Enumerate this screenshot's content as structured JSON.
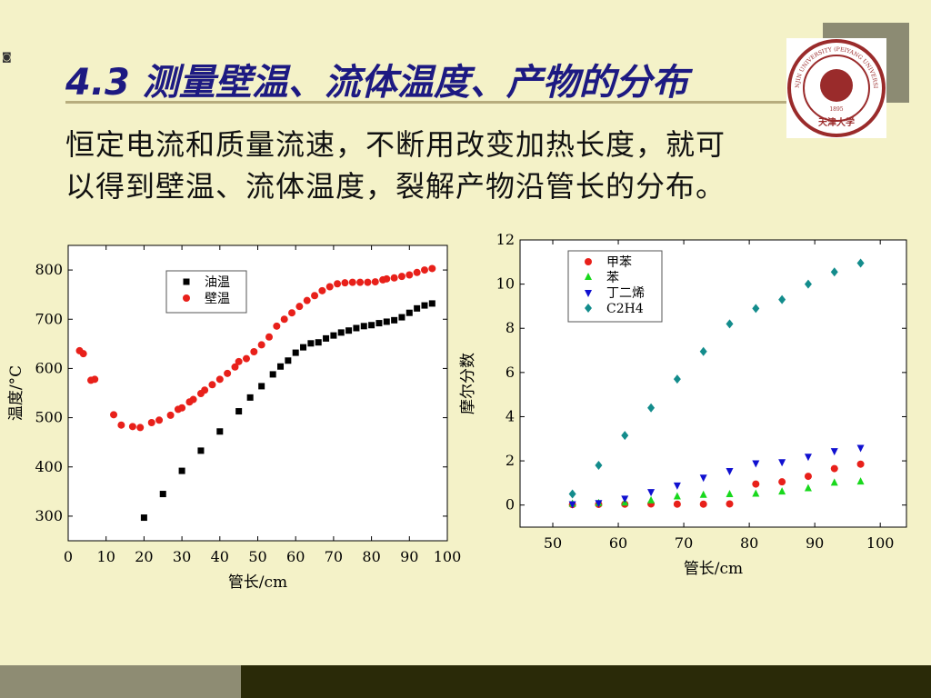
{
  "slide": {
    "title": "4.3 测量壁温、流体温度、产物的分布",
    "body_line1": "恒定电流和质量流速，不断用改变加热长度，就可",
    "body_line2": "以得到壁温、流体温度，裂解产物沿管长的分布。",
    "logo_lines": [
      "TIANJIN UNIVERSITY (PEIYANG UNIVERSITY)",
      "1895",
      "天津大学"
    ],
    "colors": {
      "background": "#f4f2c8",
      "title": "#1d1a82",
      "rule": "#b7ad7e",
      "footer_light": "#8e8c73",
      "footer_dark": "#2a2a08",
      "seal": "#9a2b2b"
    }
  },
  "chart_data": [
    {
      "type": "scatter",
      "xlabel": "管长/cm",
      "ylabel": "温度/°C",
      "xlim": [
        0,
        100
      ],
      "ylim": [
        250,
        850
      ],
      "xticks": [
        0,
        10,
        20,
        30,
        40,
        50,
        60,
        70,
        80,
        90,
        100
      ],
      "yticks": [
        300,
        400,
        500,
        600,
        700,
        800
      ],
      "legend_position": "top-center",
      "series": [
        {
          "name": "油温",
          "marker": "square",
          "color": "#000000",
          "x": [
            20,
            25,
            30,
            35,
            40,
            45,
            48,
            51,
            54,
            56,
            58,
            60,
            62,
            64,
            66,
            68,
            70,
            72,
            74,
            76,
            78,
            80,
            82,
            84,
            86,
            88,
            90,
            92,
            94,
            96
          ],
          "y": [
            297,
            345,
            392,
            433,
            472,
            513,
            541,
            564,
            588,
            604,
            616,
            632,
            643,
            651,
            653,
            661,
            667,
            673,
            677,
            682,
            686,
            688,
            692,
            695,
            698,
            704,
            713,
            722,
            728,
            732
          ]
        },
        {
          "name": "壁温",
          "marker": "circle",
          "color": "#e8201a",
          "x": [
            3,
            4,
            6,
            7,
            12,
            14,
            17,
            19,
            22,
            24,
            27,
            29,
            30,
            32,
            33,
            35,
            36,
            38,
            40,
            42,
            44,
            45,
            47,
            49,
            51,
            53,
            55,
            57,
            59,
            61,
            63,
            65,
            67,
            69,
            71,
            73,
            75,
            77,
            79,
            81,
            83,
            84,
            86,
            88,
            90,
            92,
            94,
            96
          ],
          "y": [
            636,
            630,
            576,
            578,
            506,
            485,
            482,
            480,
            490,
            495,
            505,
            517,
            520,
            532,
            537,
            549,
            556,
            567,
            578,
            590,
            603,
            614,
            620,
            634,
            648,
            664,
            686,
            700,
            713,
            726,
            738,
            748,
            758,
            766,
            772,
            774,
            775,
            775,
            775,
            776,
            780,
            782,
            784,
            787,
            790,
            795,
            800,
            803
          ]
        }
      ]
    },
    {
      "type": "scatter",
      "xlabel": "管长/cm",
      "ylabel": "摩尔分数",
      "xlim": [
        45,
        104
      ],
      "ylim": [
        -1,
        12
      ],
      "xticks": [
        50,
        60,
        70,
        80,
        90,
        100
      ],
      "yticks": [
        0,
        2,
        4,
        6,
        8,
        10,
        12
      ],
      "legend_position": "top-left",
      "series": [
        {
          "name": "甲苯",
          "marker": "circle",
          "color": "#e8201a",
          "x": [
            53,
            57,
            61,
            65,
            69,
            73,
            77,
            81,
            85,
            89,
            93,
            97
          ],
          "y": [
            0.02,
            0.03,
            0.04,
            0.05,
            0.04,
            0.04,
            0.05,
            0.95,
            1.05,
            1.3,
            1.65,
            1.85
          ]
        },
        {
          "name": "苯",
          "marker": "triangle-up",
          "color": "#18d81c",
          "x": [
            53,
            57,
            61,
            65,
            69,
            73,
            77,
            81,
            85,
            89,
            93,
            97
          ],
          "y": [
            0.05,
            0.08,
            0.1,
            0.2,
            0.38,
            0.45,
            0.48,
            0.5,
            0.6,
            0.75,
            1.0,
            1.05
          ]
        },
        {
          "name": "丁二烯",
          "marker": "triangle-down",
          "color": "#1010d0",
          "x": [
            53,
            57,
            61,
            65,
            69,
            73,
            77,
            81,
            85,
            89,
            93,
            97
          ],
          "y": [
            0.05,
            0.1,
            0.3,
            0.6,
            0.9,
            1.25,
            1.55,
            1.9,
            1.95,
            2.2,
            2.45,
            2.6
          ]
        },
        {
          "name": "C2H4",
          "marker": "diamond",
          "color": "#138c8c",
          "x": [
            53,
            57,
            61,
            65,
            69,
            73,
            77,
            81,
            85,
            89,
            93,
            97
          ],
          "y": [
            0.5,
            1.8,
            3.15,
            4.4,
            5.7,
            6.95,
            8.2,
            8.9,
            9.3,
            10.0,
            10.55,
            10.95
          ]
        }
      ]
    }
  ]
}
